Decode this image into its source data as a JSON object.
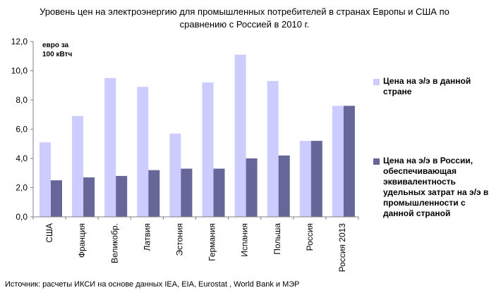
{
  "title_line1": "Уровень цен на электроэнергию для промышленных потребителей в странах Европы и США по",
  "title_line2": "сравнению с Россией в 2010 г.",
  "source": "Источник: расчеты ИКСИ на основе данных IEA, EIA, Eurostat , World Bank и МЭР",
  "colors": {
    "series1": "#ccccff",
    "series2": "#666699",
    "axis": "#808080"
  },
  "chart_data": {
    "type": "bar",
    "title": "Уровень цен на электроэнергию для промышленных потребителей в странах Европы и США по сравнению с Россией в 2010 г.",
    "ylabel": "евро за\n100 кВтч",
    "ylim": [
      0,
      12
    ],
    "yticks": [
      "0,0",
      "2,0",
      "4,0",
      "6,0",
      "8,0",
      "10,0",
      "12,0"
    ],
    "grid": false,
    "legend_position": "right",
    "categories": [
      "США",
      "Франция",
      "Великобр.",
      "Латвия",
      "Эстония",
      "Германия",
      "Испания",
      "Польша",
      "Россия",
      "Россия 2013"
    ],
    "series": [
      {
        "name": "Цена на э/э в данной стране",
        "values": [
          5.1,
          6.9,
          9.5,
          8.9,
          5.7,
          9.2,
          11.1,
          9.3,
          5.2,
          7.6
        ]
      },
      {
        "name": "Цена на э/э в России, обеспечивающая эквивалентность удельных затрат на э/э в промышленности с данной страной",
        "values": [
          2.5,
          2.7,
          2.8,
          3.2,
          3.3,
          3.3,
          4.0,
          4.2,
          5.2,
          7.6
        ]
      }
    ]
  }
}
